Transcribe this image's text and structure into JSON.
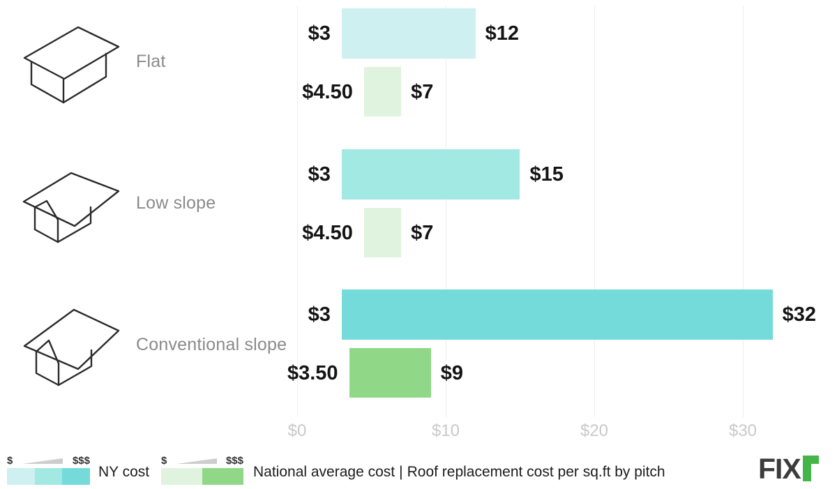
{
  "caption": "Roof replacement cost per sq.ft by pitch",
  "legend": {
    "ny": {
      "label": "NY cost",
      "scale_low": "$",
      "scale_high": "$$$",
      "colors": [
        "#cef0f0",
        "#a2e8e3",
        "#74dbda"
      ]
    },
    "national": {
      "label": "National average cost",
      "scale_low": "$",
      "scale_high": "$$$",
      "colors": [
        "#e0f3de",
        "#90d787"
      ]
    },
    "separator": "|"
  },
  "brand": {
    "logo_text": "FIX",
    "logo_r_color": "#45b549",
    "logo_text_color": "#3b3b3b"
  },
  "chart_data": {
    "type": "bar",
    "orientation": "horizontal",
    "title": "Roof replacement cost per sq.ft by pitch",
    "categories": [
      "Flat",
      "Low slope",
      "Conventional slope"
    ],
    "series": [
      {
        "name": "NY cost",
        "ranges": [
          [
            3,
            12
          ],
          [
            3,
            15
          ],
          [
            3,
            32
          ]
        ],
        "range_labels": [
          [
            "$3",
            "$12"
          ],
          [
            "$3",
            "$15"
          ],
          [
            "$3",
            "$32"
          ]
        ],
        "bar_colors": [
          "#cef0f0",
          "#a2e8e3",
          "#74dbda"
        ]
      },
      {
        "name": "National average cost",
        "ranges": [
          [
            4.5,
            7
          ],
          [
            4.5,
            7
          ],
          [
            3.5,
            9
          ]
        ],
        "range_labels": [
          [
            "$4.50",
            "$7"
          ],
          [
            "$4.50",
            "$7"
          ],
          [
            "$3.50",
            "$9"
          ]
        ],
        "bar_colors": [
          "#e0f3de",
          "#e0f3de",
          "#90d787"
        ]
      }
    ],
    "x_axis": {
      "tick_labels": [
        "$0",
        "$10",
        "$20",
        "$30"
      ],
      "tick_values": [
        0,
        10,
        20,
        30
      ],
      "min": 0,
      "max": 36,
      "grid": true
    },
    "legend_position": "bottom"
  }
}
